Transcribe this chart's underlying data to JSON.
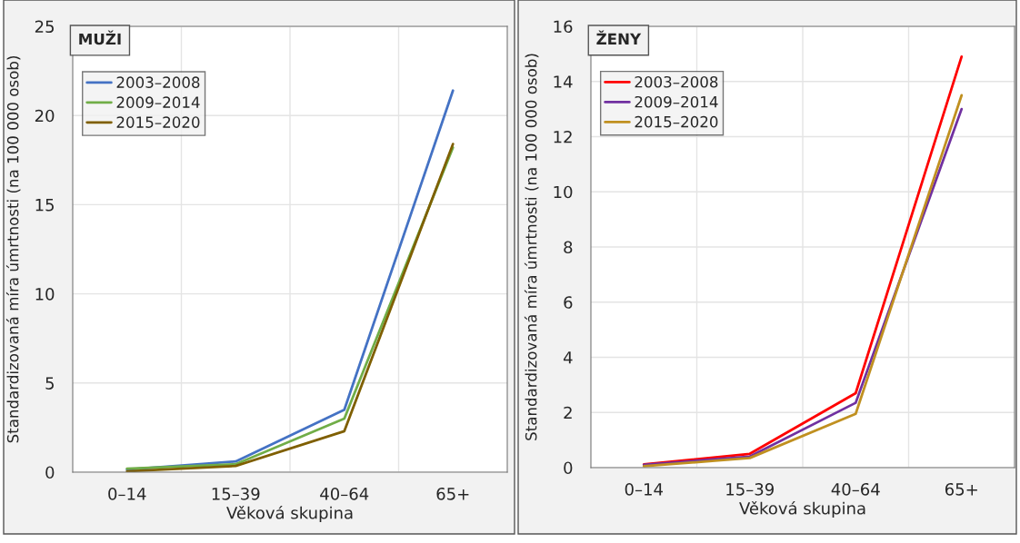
{
  "chart_data": [
    {
      "type": "line",
      "legend_title": "MUŽI",
      "xlabel": "Věková skupina",
      "ylabel": "Standardizovaná míra úmrtnosti (na 100 000 osob)",
      "categories": [
        "0–14",
        "15–39",
        "40–64",
        "65+"
      ],
      "ylim": [
        0,
        25
      ],
      "yticks": [
        0,
        5,
        10,
        15,
        20,
        25
      ],
      "grid": true,
      "legend": "top left",
      "marker": "none",
      "line_style": "solid",
      "series": [
        {
          "name": "2003–2008",
          "color": "#4472c4",
          "values": [
            0.15,
            0.6,
            3.5,
            21.4
          ]
        },
        {
          "name": "2009–2014",
          "color": "#70ad47",
          "values": [
            0.2,
            0.45,
            3.0,
            18.2
          ]
        },
        {
          "name": "2015–2020",
          "color": "#7f5f00",
          "values": [
            0.05,
            0.35,
            2.3,
            18.4
          ]
        }
      ]
    },
    {
      "type": "line",
      "legend_title": "ŽENY",
      "xlabel": "Věková skupina",
      "ylabel": "Standardizovaná míra úmrtnosti (na 100 000 osob)",
      "categories": [
        "0–14",
        "15–39",
        "40–64",
        "65+"
      ],
      "ylim": [
        0,
        16
      ],
      "yticks": [
        0,
        2,
        4,
        6,
        8,
        10,
        12,
        14,
        16
      ],
      "grid": true,
      "legend": "top left",
      "marker": "none",
      "line_style": "solid",
      "series": [
        {
          "name": "2003–2008",
          "color": "#ff0000",
          "values": [
            0.12,
            0.5,
            2.7,
            14.9
          ]
        },
        {
          "name": "2009–2014",
          "color": "#7030a0",
          "values": [
            0.1,
            0.4,
            2.35,
            13.0
          ]
        },
        {
          "name": "2015–2020",
          "color": "#c09020",
          "values": [
            0.05,
            0.35,
            1.95,
            13.5
          ]
        }
      ]
    }
  ]
}
